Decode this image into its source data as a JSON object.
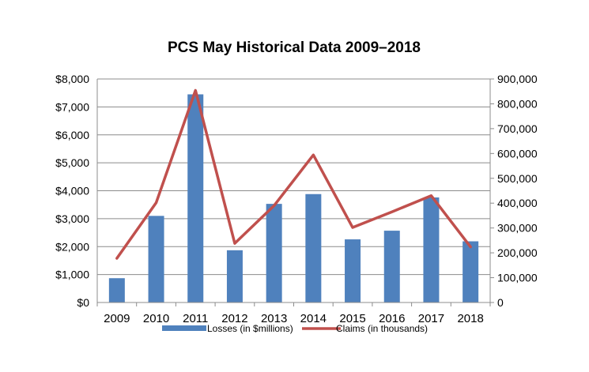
{
  "chart_data": {
    "type": "bar",
    "title": "PCS May Historical Data 2009–2018",
    "categories": [
      "2009",
      "2010",
      "2011",
      "2012",
      "2013",
      "2014",
      "2015",
      "2016",
      "2017",
      "2018"
    ],
    "series": [
      {
        "name": "Losses (in $millions)",
        "type": "bar",
        "axis": "left",
        "color": "#4f81bd",
        "values": [
          870,
          3100,
          7450,
          1870,
          3530,
          3880,
          2260,
          2570,
          3760,
          2190
        ]
      },
      {
        "name": "Claims (in thousands)",
        "type": "line",
        "axis": "right",
        "color": "#c0504d",
        "values": [
          178000,
          402000,
          854000,
          238000,
          390000,
          594000,
          302000,
          365000,
          430000,
          224000
        ]
      }
    ],
    "y_left": {
      "range": [
        0,
        8000
      ],
      "ticks": [
        0,
        1000,
        2000,
        3000,
        4000,
        5000,
        6000,
        7000,
        8000
      ],
      "tick_labels": [
        "$0",
        "$1,000",
        "$2,000",
        "$3,000",
        "$4,000",
        "$5,000",
        "$6,000",
        "$7,000",
        "$8,000"
      ]
    },
    "y_right": {
      "range": [
        0,
        900000
      ],
      "ticks": [
        0,
        100000,
        200000,
        300000,
        400000,
        500000,
        600000,
        700000,
        800000,
        900000
      ],
      "tick_labels": [
        "0",
        "100,000",
        "200,000",
        "300,000",
        "400,000",
        "500,000",
        "600,000",
        "700,000",
        "800,000",
        "900,000"
      ]
    },
    "grid": true,
    "legend_position": "bottom"
  }
}
